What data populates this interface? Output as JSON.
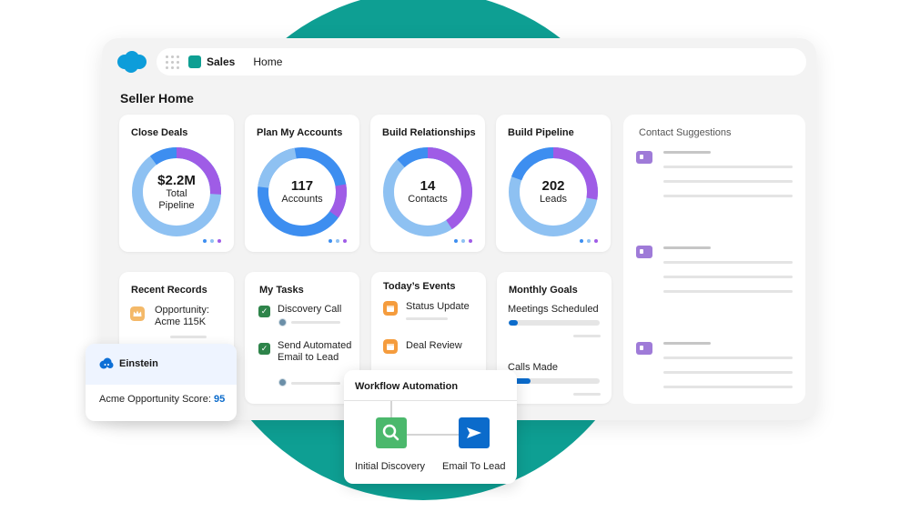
{
  "app": {
    "name": "Sales",
    "nav_home": "Home",
    "page_title": "Seller Home"
  },
  "cards": {
    "close_deals": {
      "title": "Close Deals",
      "value": "$2.2M",
      "label": "Total Pipeline"
    },
    "plan_accounts": {
      "title": "Plan My Accounts",
      "value": "117",
      "label": "Accounts"
    },
    "build_rel": {
      "title": "Build Relationships",
      "value": "14",
      "label": "Contacts"
    },
    "build_pipe": {
      "title": "Build Pipeline",
      "value": "202",
      "label": "Leads"
    }
  },
  "contact_suggestions": {
    "title": "Contact Suggestions"
  },
  "recent_records": {
    "title": "Recent Records",
    "item": "Opportunity: Acme 115K"
  },
  "my_tasks": {
    "title": "My Tasks",
    "tasks": [
      "Discovery Call",
      "Send Automated Email to Lead"
    ]
  },
  "todays_events": {
    "title": "Today’s Events",
    "events": [
      "Status Update",
      "Deal Review"
    ]
  },
  "monthly_goals": {
    "title": "Monthly Goals",
    "goals": [
      {
        "label": "Meetings Scheduled",
        "progress": 0.1
      },
      {
        "label": "Calls Made",
        "progress": 0.24
      }
    ]
  },
  "einstein": {
    "title": "Einstein",
    "label": "Acme Opportunity Score:",
    "score": "95"
  },
  "workflow": {
    "title": "Workflow Automation",
    "steps": [
      "Initial Discovery",
      "Email To Lead"
    ]
  },
  "colors": {
    "teal": "#0e9f93",
    "blue": "#0b6bcb",
    "purple": "#9f5ce6",
    "light_blue": "#8ec1f2",
    "mid_blue": "#3d8ef0",
    "green": "#4bb86c"
  },
  "icons": [
    "salesforce-cloud-icon",
    "app-launcher-icon",
    "sales-app-icon",
    "contact-card-icon",
    "opportunity-crown-icon",
    "task-check-icon",
    "calendar-event-icon",
    "einstein-icon",
    "search-icon",
    "send-icon"
  ]
}
